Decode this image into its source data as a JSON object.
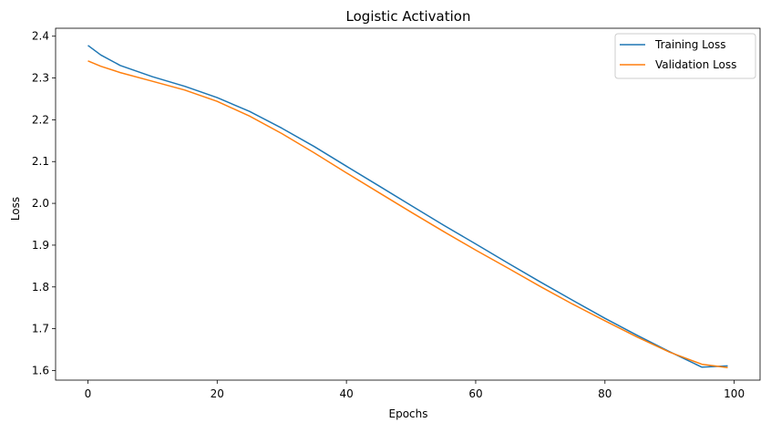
{
  "chart_data": {
    "type": "line",
    "title": "Logistic Activation",
    "xlabel": "Epochs",
    "ylabel": "Loss",
    "xlim": [
      -5,
      104
    ],
    "ylim": [
      1.577,
      2.419
    ],
    "xticks": [
      0,
      20,
      40,
      60,
      80,
      100
    ],
    "xtick_labels": [
      "0",
      "20",
      "40",
      "60",
      "80",
      "100"
    ],
    "yticks": [
      1.6,
      1.7,
      1.8,
      1.9,
      2.0,
      2.1,
      2.2,
      2.3,
      2.4
    ],
    "ytick_labels": [
      "1.6",
      "1.7",
      "1.8",
      "1.9",
      "2.0",
      "2.1",
      "2.2",
      "2.3",
      "2.4"
    ],
    "grid": false,
    "legend_position": "top-right",
    "series": [
      {
        "name": "Training Loss",
        "color": "#1f77b4",
        "x": [
          0,
          2,
          5,
          10,
          15,
          20,
          25,
          30,
          35,
          40,
          45,
          50,
          55,
          60,
          65,
          70,
          75,
          80,
          85,
          90,
          95,
          99
        ],
        "y": [
          2.378,
          2.355,
          2.33,
          2.303,
          2.28,
          2.253,
          2.22,
          2.18,
          2.136,
          2.089,
          2.042,
          1.995,
          1.948,
          1.903,
          1.857,
          1.812,
          1.768,
          1.725,
          1.684,
          1.645,
          1.608,
          1.611
        ]
      },
      {
        "name": "Validation Loss",
        "color": "#ff7f0e",
        "x": [
          0,
          2,
          5,
          10,
          15,
          20,
          25,
          30,
          35,
          40,
          45,
          50,
          55,
          60,
          65,
          70,
          75,
          80,
          85,
          90,
          95,
          99
        ],
        "y": [
          2.341,
          2.328,
          2.313,
          2.292,
          2.271,
          2.244,
          2.209,
          2.167,
          2.121,
          2.073,
          2.026,
          1.979,
          1.933,
          1.888,
          1.845,
          1.801,
          1.759,
          1.719,
          1.68,
          1.644,
          1.615,
          1.607
        ]
      }
    ]
  }
}
